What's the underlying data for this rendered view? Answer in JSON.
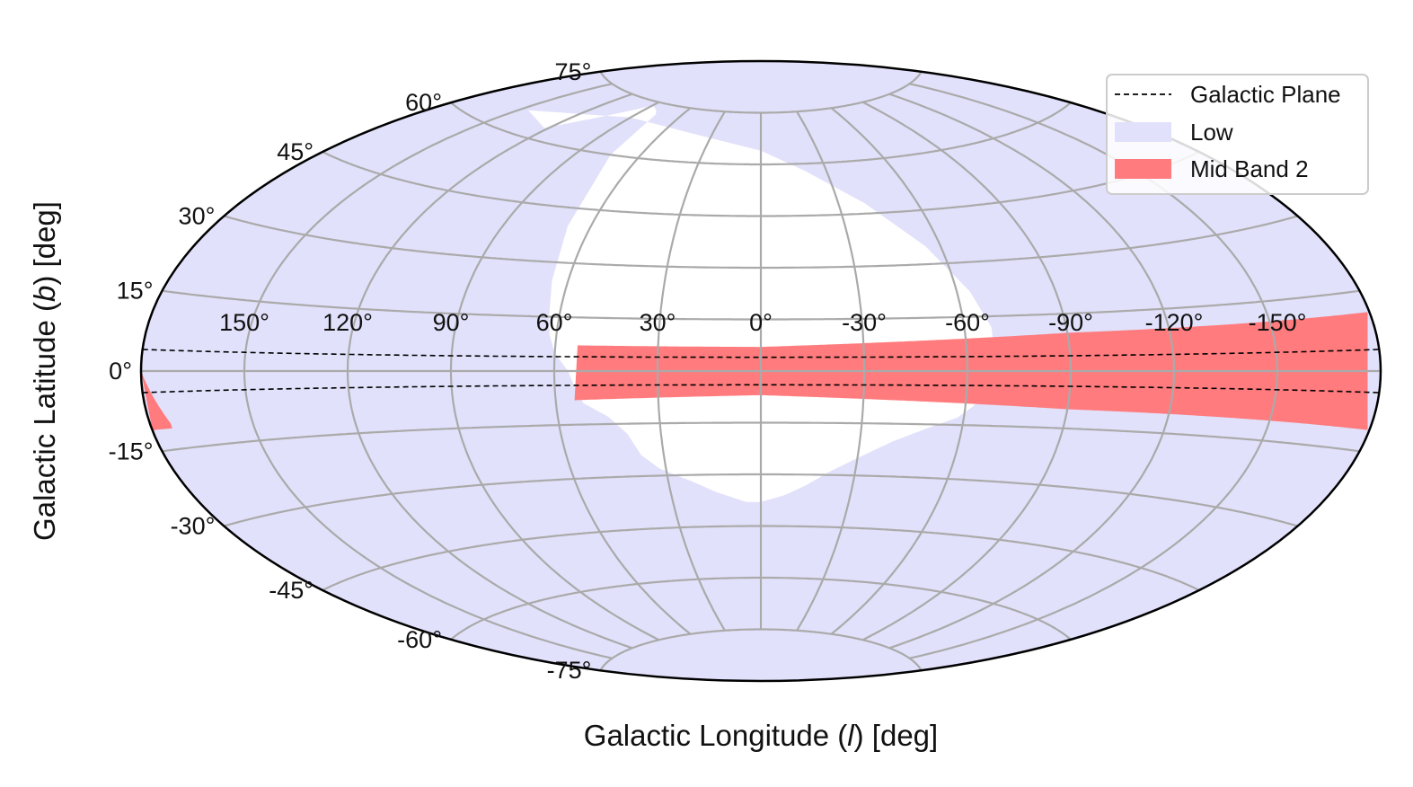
{
  "chart_data": {
    "type": "area",
    "projection": "aitoff",
    "x_axis": {
      "label_prefix": "Galactic Longitude (",
      "label_italic": "l",
      "label_suffix": ") [deg]",
      "ticks": [
        150,
        120,
        90,
        60,
        30,
        0,
        -30,
        -60,
        -90,
        -120,
        -150
      ],
      "tick_labels": [
        "150°",
        "120°",
        "90°",
        "60°",
        "30°",
        "0°",
        "-30°",
        "-60°",
        "-90°",
        "-120°",
        "-150°"
      ],
      "range": [
        180,
        -180
      ]
    },
    "y_axis": {
      "label_prefix": "Galactic Latitude (",
      "label_italic": "b",
      "label_suffix": ") [deg]",
      "ticks": [
        75,
        60,
        45,
        30,
        15,
        0,
        -15,
        -30,
        -45,
        -60,
        -75
      ],
      "tick_labels": [
        "75°",
        "60°",
        "45°",
        "30°",
        "15°",
        "0°",
        "-15°",
        "-30°",
        "-45°",
        "-60°",
        "-75°"
      ],
      "range": [
        -90,
        90
      ]
    },
    "grid": true,
    "legend": {
      "placement": "top-right",
      "entries": [
        {
          "label": "Galactic Plane",
          "style": "dashed-line",
          "color": "#000000"
        },
        {
          "label": "Low",
          "style": "fill",
          "color": "#e1e1fb"
        },
        {
          "label": "Mid Band 2",
          "style": "fill",
          "color": "#ff7b7d"
        }
      ]
    },
    "series": [
      {
        "name": "Low",
        "color": "#e1e1fb",
        "white_region_outline": [
          [
            146,
            65
          ],
          [
            122,
            63
          ],
          [
            108,
            68
          ],
          [
            96,
            72
          ],
          [
            90,
            74
          ],
          [
            82,
            73
          ],
          [
            78,
            72
          ],
          [
            74,
            60
          ],
          [
            68,
            40
          ],
          [
            65,
            25
          ],
          [
            63,
            15
          ],
          [
            62,
            10
          ],
          [
            60,
            5
          ],
          [
            56,
            0
          ],
          [
            54,
            -5
          ],
          [
            52,
            -9
          ],
          [
            45,
            -13
          ],
          [
            40,
            -18
          ],
          [
            37,
            -24
          ],
          [
            32,
            -28
          ],
          [
            22,
            -32
          ],
          [
            15,
            -35
          ],
          [
            5,
            -38
          ],
          [
            0,
            -38
          ],
          [
            -8,
            -36
          ],
          [
            -15,
            -33
          ],
          [
            -22,
            -29
          ],
          [
            -30,
            -25
          ],
          [
            -40,
            -20
          ],
          [
            -50,
            -16
          ],
          [
            -58,
            -13
          ],
          [
            -62,
            -10
          ],
          [
            -66,
            -6
          ],
          [
            -68,
            0
          ],
          [
            -68,
            5
          ],
          [
            -68,
            12
          ],
          [
            -64,
            22
          ],
          [
            -55,
            35
          ],
          [
            -40,
            48
          ],
          [
            -20,
            58
          ],
          [
            0,
            64
          ],
          [
            40,
            68
          ],
          [
            90,
            70
          ],
          [
            146,
            65
          ]
        ]
      },
      {
        "name": "Mid Band 2",
        "color": "#ff7b7d",
        "band": [
          {
            "l": 54.5,
            "b_min": -8.2,
            "b_max": -8.2
          },
          {
            "l": 57,
            "b_min": -8.2,
            "b_max": 7.2
          },
          {
            "l": 0,
            "b_min": -7,
            "b_max": 7
          },
          {
            "l": -90,
            "b_min": -10,
            "b_max": 10
          },
          {
            "l": -135,
            "b_min": -10.5,
            "b_max": 10.5
          },
          {
            "l": -180,
            "b_min": -11,
            "b_max": 11
          }
        ],
        "wrap_segment": [
          {
            "l": 180,
            "b_min": -11,
            "b_max": 0
          },
          {
            "l": 174,
            "b_min": -11,
            "b_max": -10
          }
        ]
      },
      {
        "name": "Galactic Plane",
        "color": "#000000",
        "lines_b": [
          4,
          -4
        ]
      }
    ]
  }
}
